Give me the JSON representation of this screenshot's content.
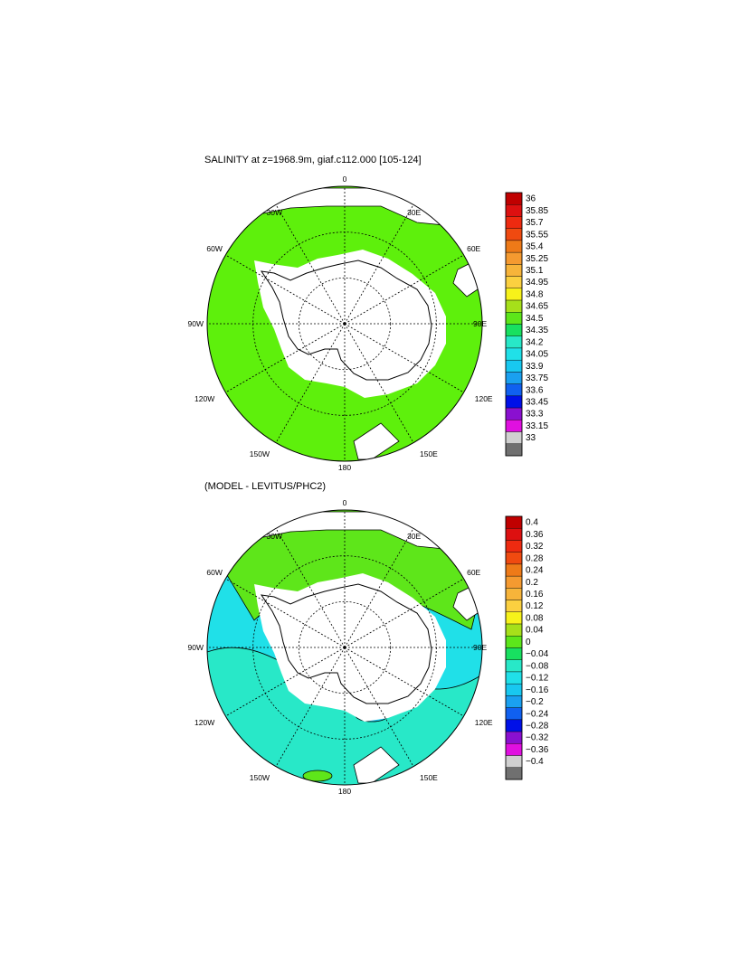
{
  "panel1": {
    "title": "SALINITY at z=1968.9m, giaf.c112.000 [105-124]",
    "lon_labels": [
      "0",
      "30E",
      "60E",
      "90E",
      "120E",
      "150E",
      "180",
      "150W",
      "120W",
      "90W",
      "60W",
      "30W"
    ],
    "colorbar": {
      "labels": [
        "36",
        "35.85",
        "35.7",
        "35.55",
        "35.4",
        "35.25",
        "35.1",
        "34.95",
        "34.8",
        "34.65",
        "34.5",
        "34.35",
        "34.2",
        "34.05",
        "33.9",
        "33.75",
        "33.6",
        "33.45",
        "33.3",
        "33.15",
        "33"
      ],
      "colors": [
        "#c00000",
        "#dd1010",
        "#ee2a10",
        "#f04a10",
        "#ee7a18",
        "#f59a30",
        "#f7b43a",
        "#fbd040",
        "#f7f21a",
        "#a6e01a",
        "#5ce61a",
        "#18e060",
        "#28e8c8",
        "#20e0e8",
        "#18c8f0",
        "#1aa0f0",
        "#1060f0",
        "#0010e8",
        "#8a10d0",
        "#e010e0",
        "#d0d0d0",
        "#707070"
      ]
    },
    "field": {
      "ocean_color": "#5ef00c",
      "land_color": "#ffffff"
    }
  },
  "panel2": {
    "title": "(MODEL - LEVITUS/PHC2)",
    "lon_labels": [
      "0",
      "30E",
      "60E",
      "90E",
      "120E",
      "150E",
      "180",
      "150W",
      "120W",
      "90W",
      "60W",
      "30W"
    ],
    "colorbar": {
      "labels": [
        "0.4",
        "0.36",
        "0.32",
        "0.28",
        "0.24",
        "0.2",
        "0.16",
        "0.12",
        "0.08",
        "0.04",
        "0",
        "−0.04",
        "−0.08",
        "−0.12",
        "−0.16",
        "−0.2",
        "−0.24",
        "−0.28",
        "−0.32",
        "−0.36",
        "−0.4"
      ],
      "colors": [
        "#c00000",
        "#dd1010",
        "#ee2a10",
        "#f04a10",
        "#ee7a18",
        "#f59a30",
        "#f7b43a",
        "#fbd040",
        "#f7f21a",
        "#a6e01a",
        "#5ce61a",
        "#18e060",
        "#28e8c8",
        "#20e0e8",
        "#18c8f0",
        "#1aa0f0",
        "#1060f0",
        "#0010e8",
        "#8a10d0",
        "#e010e0",
        "#d0d0d0",
        "#707070"
      ]
    },
    "field": {
      "positive_color": "#5ee61a",
      "near_zero_color": "#28e8c8",
      "negative_color": "#20e0e8",
      "land_color": "#ffffff"
    }
  }
}
